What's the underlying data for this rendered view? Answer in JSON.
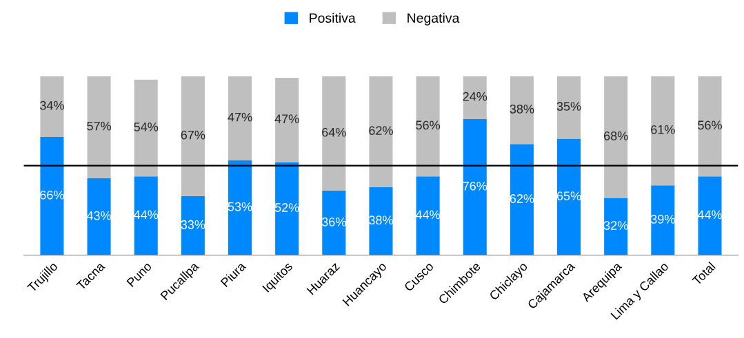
{
  "chart_data": {
    "type": "bar",
    "stacked": true,
    "legend": "top",
    "grid": false,
    "categories": [
      "Trujillo",
      "Tacna",
      "Puno",
      "Pucallpa",
      "Piura",
      "Iquitos",
      "Huaraz",
      "Huancayo",
      "Cusco",
      "Chimbote",
      "Chiclayo",
      "Cajamarca",
      "Arequipa",
      "Lima y Callao",
      "Total"
    ],
    "series": [
      {
        "name": "Positiva",
        "color": "#0088ff",
        "values": [
          66,
          43,
          44,
          33,
          53,
          52,
          36,
          38,
          44,
          76,
          62,
          65,
          32,
          39,
          44
        ],
        "value_labels": [
          "66%",
          "43%",
          "44%",
          "33%",
          "53%",
          "52%",
          "36%",
          "38%",
          "44%",
          "76%",
          "62%",
          "65%",
          "32%",
          "39%",
          "44%"
        ]
      },
      {
        "name": "Negativa",
        "color": "#bfbfbf",
        "values": [
          34,
          57,
          54,
          67,
          47,
          47,
          64,
          62,
          56,
          24,
          38,
          35,
          68,
          61,
          56
        ],
        "value_labels": [
          "34%",
          "57%",
          "54%",
          "67%",
          "47%",
          "47%",
          "64%",
          "62%",
          "56%",
          "24%",
          "38%",
          "35%",
          "68%",
          "61%",
          "56%"
        ]
      }
    ],
    "ref_lines": [
      {
        "axis": "y",
        "value": 50,
        "color": "#000000"
      }
    ]
  }
}
